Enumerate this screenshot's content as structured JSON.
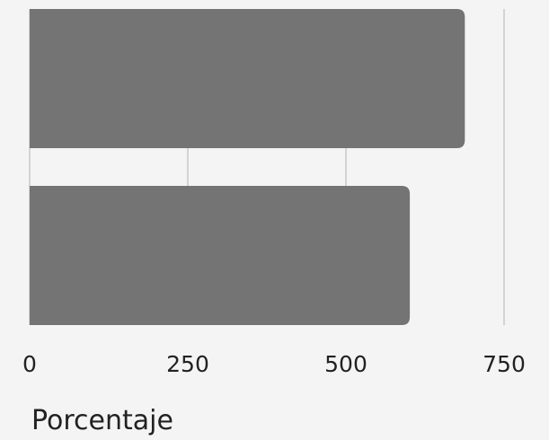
{
  "chart_data": {
    "type": "bar",
    "orientation": "horizontal",
    "categories": [
      "",
      ""
    ],
    "values": [
      688,
      601
    ],
    "xlabel": "Porcentaje",
    "ylabel": "",
    "xlim": [
      0,
      750
    ],
    "xticks": [
      0,
      250,
      500,
      750
    ],
    "xtick_labels": [
      "0",
      "250",
      "500",
      "750"
    ],
    "grid": true,
    "legend": "none",
    "bar_color": "#747474",
    "grid_color": "#c8c8c8",
    "background": "#f4f4f4"
  }
}
